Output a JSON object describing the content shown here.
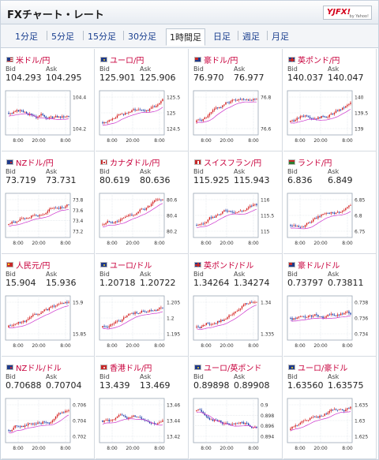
{
  "header": {
    "title": "FXチャート・レート",
    "logo_text": "YJFX!",
    "logo_sub": "by Yahoo!"
  },
  "tabs": [
    {
      "label": "1分足",
      "active": false
    },
    {
      "label": "5分足",
      "active": false
    },
    {
      "label": "15分足",
      "active": false
    },
    {
      "label": "30分足",
      "active": false
    },
    {
      "label": "1時間足",
      "active": true
    },
    {
      "label": "日足",
      "active": false
    },
    {
      "label": "週足",
      "active": false
    },
    {
      "label": "月足",
      "active": false
    }
  ],
  "labels": {
    "bid": "Bid",
    "ask": "Ask"
  },
  "x_ticks": [
    "8:00",
    "20:00",
    "8:00"
  ],
  "colors": {
    "pair_text": "#c8003c",
    "candle_up": "#d42424",
    "candle_down": "#1f3ea8",
    "ma_line": "#cc33cc"
  },
  "pairs": [
    {
      "name": "米ドル/円",
      "flag": "flag-us",
      "bid": "104.293",
      "ask": "104.295",
      "y_ticks": [
        "104.4",
        "104.2"
      ],
      "trend": "flat"
    },
    {
      "name": "ユーロ/円",
      "flag": "flag-eu",
      "bid": "125.901",
      "ask": "125.906",
      "y_ticks": [
        "125.5",
        "125",
        "124.5"
      ],
      "trend": "up"
    },
    {
      "name": "豪ドル/円",
      "flag": "flag-au",
      "bid": "76.970",
      "ask": "76.977",
      "y_ticks": [
        "76.8",
        "76.6"
      ],
      "trend": "up"
    },
    {
      "name": "英ポンド/円",
      "flag": "flag-gb",
      "bid": "140.037",
      "ask": "140.047",
      "y_ticks": [
        "140",
        "139.5",
        "139"
      ],
      "trend": "up"
    },
    {
      "name": "NZドル/円",
      "flag": "flag-nz",
      "bid": "73.719",
      "ask": "73.731",
      "y_ticks": [
        "73.8",
        "73.6",
        "73.4",
        "73.2"
      ],
      "trend": "up"
    },
    {
      "name": "カナダドル/円",
      "flag": "flag-ca",
      "bid": "80.619",
      "ask": "80.636",
      "y_ticks": [
        "80.6",
        "80.4",
        "80.2"
      ],
      "trend": "up"
    },
    {
      "name": "スイスフラン/円",
      "flag": "flag-ch",
      "bid": "115.925",
      "ask": "115.943",
      "y_ticks": [
        "116",
        "115.5",
        "115"
      ],
      "trend": "up"
    },
    {
      "name": "ランド/円",
      "flag": "flag-za",
      "bid": "6.836",
      "ask": "6.849",
      "y_ticks": [
        "6.85",
        "6.8",
        "6.75"
      ],
      "trend": "up"
    },
    {
      "name": "人民元/円",
      "flag": "flag-cn",
      "bid": "15.904",
      "ask": "15.936",
      "y_ticks": [
        "15.9",
        "15.85"
      ],
      "trend": "up"
    },
    {
      "name": "ユーロ/ドル",
      "flag": "flag-eu",
      "bid": "1.20718",
      "ask": "1.20722",
      "y_ticks": [
        "1.205",
        "1.2",
        "1.195"
      ],
      "trend": "up"
    },
    {
      "name": "英ポンド/ドル",
      "flag": "flag-gb",
      "bid": "1.34264",
      "ask": "1.34274",
      "y_ticks": [
        "1.34",
        "1.335"
      ],
      "trend": "up"
    },
    {
      "name": "豪ドル/ドル",
      "flag": "flag-au",
      "bid": "0.73797",
      "ask": "0.73811",
      "y_ticks": [
        "0.738",
        "0.736",
        "0.734"
      ],
      "trend": "flat"
    },
    {
      "name": "NZドル/ドル",
      "flag": "flag-nz",
      "bid": "0.70688",
      "ask": "0.70704",
      "y_ticks": [
        "0.706",
        "0.704",
        "0.702"
      ],
      "trend": "up"
    },
    {
      "name": "香港ドル/円",
      "flag": "flag-hk",
      "bid": "13.439",
      "ask": "13.469",
      "y_ticks": [
        "13.46",
        "13.44",
        "13.42"
      ],
      "trend": "flat"
    },
    {
      "name": "ユーロ/英ポンド",
      "flag": "flag-eu",
      "bid": "0.89898",
      "ask": "0.89908",
      "y_ticks": [
        "0.9",
        "0.898",
        "0.896",
        "0.894"
      ],
      "trend": "down"
    },
    {
      "name": "ユーロ/豪ドル",
      "flag": "flag-eu",
      "bid": "1.63560",
      "ask": "1.63575",
      "y_ticks": [
        "1.635",
        "1.63",
        "1.625"
      ],
      "trend": "up"
    }
  ]
}
